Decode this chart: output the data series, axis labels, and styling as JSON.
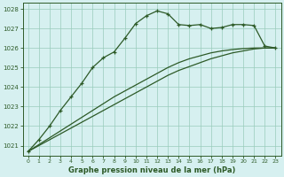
{
  "title": "Graphe pression niveau de la mer (hPa)",
  "bg_color": "#d6f0f0",
  "grid_color": "#99ccbb",
  "line_color": "#2d5a27",
  "x_ticks": [
    0,
    1,
    2,
    3,
    4,
    5,
    6,
    7,
    8,
    9,
    10,
    11,
    12,
    13,
    14,
    15,
    16,
    17,
    18,
    19,
    20,
    21,
    22,
    23
  ],
  "ylim": [
    1020.5,
    1028.3
  ],
  "yticks": [
    1021,
    1022,
    1023,
    1024,
    1025,
    1026,
    1027,
    1028
  ],
  "main_line": [
    1020.7,
    1021.3,
    1022.0,
    1022.8,
    1023.5,
    1024.2,
    1025.0,
    1025.5,
    1025.8,
    1026.5,
    1027.25,
    1027.65,
    1027.9,
    1027.75,
    1027.2,
    1027.15,
    1027.2,
    1027.0,
    1027.05,
    1027.2,
    1027.2,
    1027.15,
    1026.1,
    1026.0
  ],
  "line2": [
    1020.7,
    1021.0,
    1021.3,
    1021.6,
    1021.9,
    1022.2,
    1022.5,
    1022.8,
    1023.1,
    1023.4,
    1023.7,
    1024.0,
    1024.3,
    1024.6,
    1024.85,
    1025.05,
    1025.25,
    1025.45,
    1025.6,
    1025.75,
    1025.85,
    1025.95,
    1026.0,
    1026.0
  ],
  "line3": [
    1020.7,
    1021.05,
    1021.4,
    1021.75,
    1022.1,
    1022.45,
    1022.8,
    1023.15,
    1023.5,
    1023.8,
    1024.1,
    1024.4,
    1024.7,
    1025.0,
    1025.25,
    1025.45,
    1025.6,
    1025.75,
    1025.85,
    1025.92,
    1025.97,
    1026.0,
    1026.0,
    1026.0
  ],
  "figsize": [
    3.2,
    2.0
  ],
  "dpi": 100
}
